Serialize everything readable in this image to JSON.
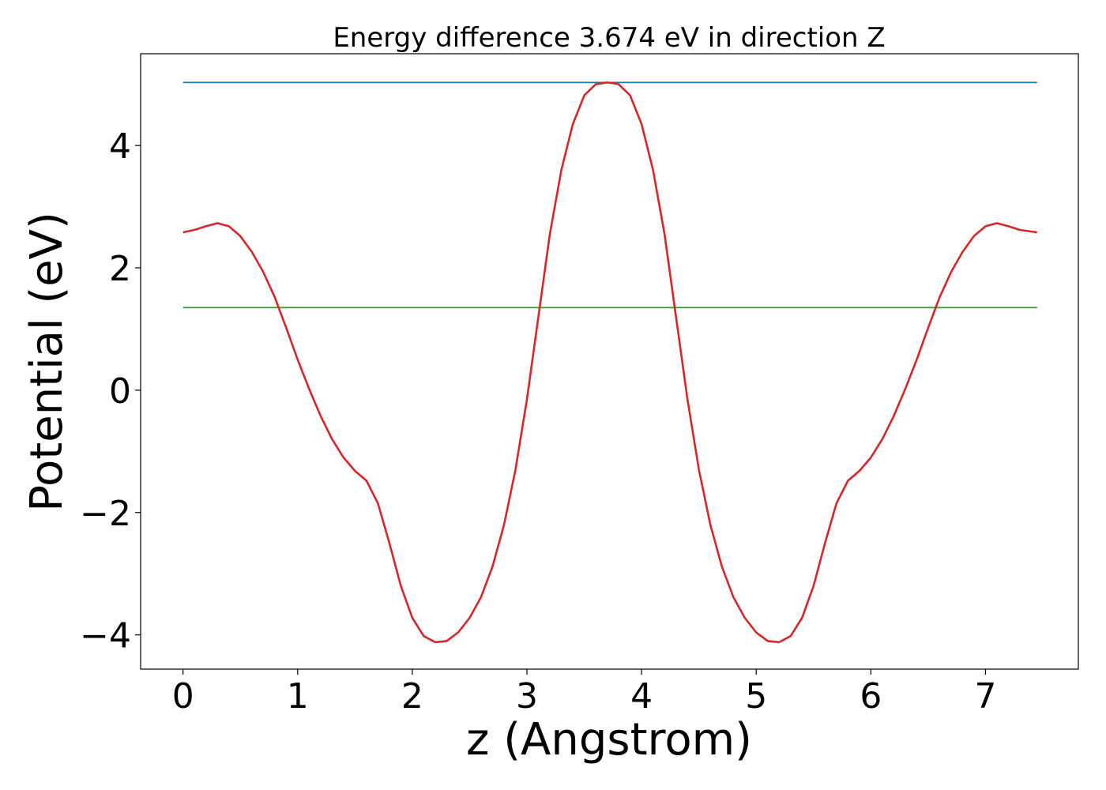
{
  "chart_data": {
    "type": "line",
    "title": "Energy difference 3.674 eV in direction Z",
    "xlabel": "z (Angstrom)",
    "ylabel": "Potential (eV)",
    "xlim": [
      -0.37,
      7.81
    ],
    "ylim": [
      -4.56,
      5.5
    ],
    "xticks": [
      0,
      1,
      2,
      3,
      4,
      5,
      6,
      7
    ],
    "yticks": [
      -4,
      -2,
      0,
      2,
      4
    ],
    "ytick_labels": [
      "−4",
      "−2",
      "0",
      "2",
      "4"
    ],
    "grid": false,
    "legend": "none",
    "series": [
      {
        "color": "#1f77b4",
        "x": [
          0,
          7.45
        ],
        "y": [
          5.03,
          5.03
        ]
      },
      {
        "color": "#2ca02c",
        "x": [
          0,
          7.45
        ],
        "y": [
          1.35,
          1.35
        ]
      },
      {
        "color": "#d62728",
        "x": [
          0,
          0.1,
          0.2,
          0.3,
          0.4,
          0.5,
          0.6,
          0.7,
          0.8,
          0.9,
          1.0,
          1.1,
          1.2,
          1.3,
          1.4,
          1.5,
          1.6,
          1.7,
          1.8,
          1.9,
          2.0,
          2.1,
          2.2,
          2.3,
          2.4,
          2.5,
          2.6,
          2.7,
          2.8,
          2.9,
          3.0,
          3.1,
          3.2,
          3.3,
          3.4,
          3.5,
          3.6,
          3.7,
          3.75,
          3.8,
          3.9,
          4.0,
          4.1,
          4.2,
          4.3,
          4.4,
          4.5,
          4.6,
          4.7,
          4.8,
          4.9,
          5.0,
          5.1,
          5.2,
          5.3,
          5.4,
          5.5,
          5.6,
          5.7,
          5.8,
          5.9,
          6.0,
          6.1,
          6.2,
          6.3,
          6.4,
          6.5,
          6.6,
          6.7,
          6.8,
          6.9,
          7.0,
          7.1,
          7.2,
          7.3,
          7.45
        ],
        "y": [
          2.58,
          2.62,
          2.68,
          2.73,
          2.68,
          2.52,
          2.26,
          1.93,
          1.52,
          1.02,
          0.5,
          0.02,
          -0.42,
          -0.8,
          -1.1,
          -1.32,
          -1.48,
          -1.85,
          -2.5,
          -3.2,
          -3.72,
          -4.02,
          -4.12,
          -4.1,
          -3.96,
          -3.72,
          -3.38,
          -2.88,
          -2.2,
          -1.3,
          -0.15,
          1.2,
          2.55,
          3.6,
          4.35,
          4.82,
          5.0,
          5.03,
          5.02,
          5.0,
          4.82,
          4.35,
          3.6,
          2.55,
          1.2,
          -0.15,
          -1.3,
          -2.2,
          -2.88,
          -3.38,
          -3.72,
          -3.96,
          -4.1,
          -4.12,
          -4.02,
          -3.72,
          -3.2,
          -2.5,
          -1.85,
          -1.48,
          -1.32,
          -1.1,
          -0.8,
          -0.42,
          0.02,
          0.5,
          1.02,
          1.52,
          1.93,
          2.26,
          2.52,
          2.68,
          2.73,
          2.68,
          2.62,
          2.58
        ]
      }
    ]
  }
}
